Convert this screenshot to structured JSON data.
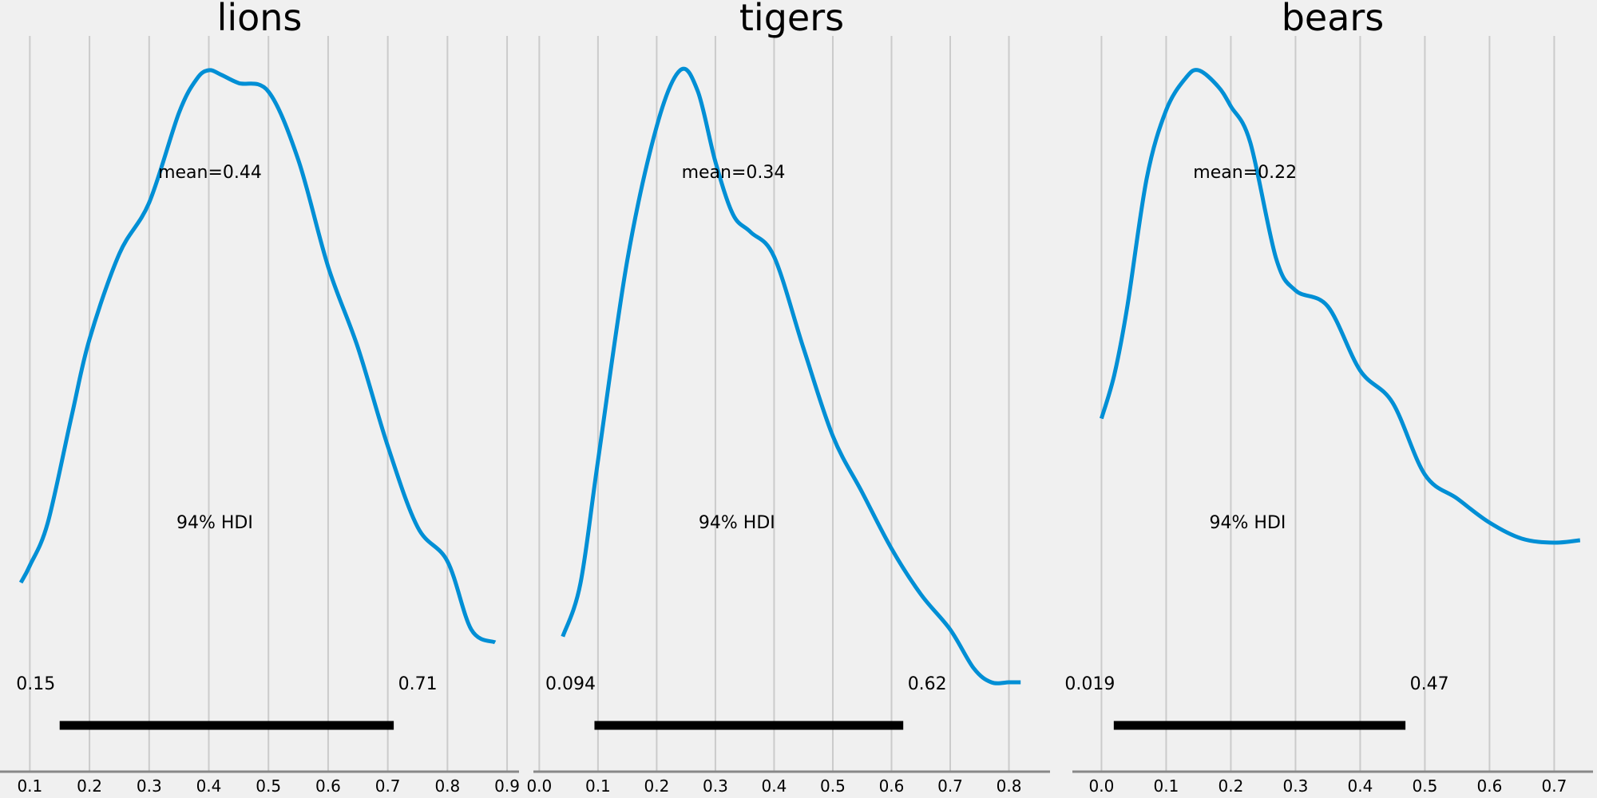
{
  "colors": {
    "background": "#f0f0f0",
    "grid": "#cbcbcb",
    "axis": "#888888",
    "density": "#008fd5",
    "hdi_bar": "#000000",
    "text": "#000000"
  },
  "chart_data": [
    {
      "type": "line",
      "title": "lions",
      "grid": true,
      "xlim": [
        0.05,
        0.92
      ],
      "xticks": [
        0.1,
        0.2,
        0.3,
        0.4,
        0.5,
        0.6,
        0.7,
        0.8,
        0.9
      ],
      "xtick_labels": [
        "0.1",
        "0.2",
        "0.3",
        "0.4",
        "0.5",
        "0.6",
        "0.7",
        "0.8",
        "0.9"
      ],
      "mean_label": "mean=0.44",
      "hdi_label": "94% HDI",
      "hdi_low": 0.15,
      "hdi_high": 0.71,
      "hdi_low_label": "0.15",
      "hdi_high_label": "0.71",
      "series": [
        {
          "x": [
            0.085,
            0.1,
            0.13,
            0.17,
            0.2,
            0.25,
            0.3,
            0.35,
            0.38,
            0.4,
            0.42,
            0.45,
            0.5,
            0.55,
            0.6,
            0.65,
            0.7,
            0.75,
            0.8,
            0.84,
            0.88
          ],
          "y": [
            0.0,
            0.04,
            0.14,
            0.39,
            0.57,
            0.77,
            0.89,
            1.1,
            1.18,
            1.2,
            1.19,
            1.17,
            1.15,
            0.99,
            0.74,
            0.55,
            0.32,
            0.13,
            0.05,
            -0.11,
            -0.14
          ]
        }
      ]
    },
    {
      "type": "line",
      "title": "tigers",
      "grid": true,
      "xlim": [
        -0.01,
        0.87
      ],
      "xticks": [
        0.0,
        0.1,
        0.2,
        0.3,
        0.4,
        0.5,
        0.6,
        0.7,
        0.8
      ],
      "xtick_labels": [
        "0.0",
        "0.1",
        "0.2",
        "0.3",
        "0.4",
        "0.5",
        "0.6",
        "0.7",
        "0.8"
      ],
      "mean_label": "mean=0.34",
      "hdi_label": "94% HDI",
      "hdi_low": 0.094,
      "hdi_high": 0.62,
      "hdi_low_label": "0.094",
      "hdi_high_label": "0.62",
      "series": [
        {
          "x": [
            0.04,
            0.07,
            0.1,
            0.15,
            0.2,
            0.24,
            0.27,
            0.3,
            0.33,
            0.36,
            0.4,
            0.45,
            0.5,
            0.55,
            0.6,
            0.65,
            0.7,
            0.74,
            0.77,
            0.8,
            0.82
          ],
          "y": [
            0.0,
            0.15,
            0.5,
            1.07,
            1.45,
            1.61,
            1.55,
            1.35,
            1.2,
            1.15,
            1.08,
            0.82,
            0.57,
            0.41,
            0.25,
            0.12,
            0.02,
            -0.09,
            -0.13,
            -0.13,
            -0.13
          ]
        }
      ]
    },
    {
      "type": "line",
      "title": "bears",
      "grid": true,
      "xlim": [
        -0.045,
        0.76
      ],
      "xticks": [
        0.0,
        0.1,
        0.2,
        0.3,
        0.4,
        0.5,
        0.6,
        0.7
      ],
      "xtick_labels": [
        "0.0",
        "0.1",
        "0.2",
        "0.3",
        "0.4",
        "0.5",
        "0.6",
        "0.7"
      ],
      "mean_label": "mean=0.22",
      "hdi_label": "94% HDI",
      "hdi_low": 0.019,
      "hdi_high": 0.47,
      "hdi_low_label": "0.019",
      "hdi_high_label": "0.47",
      "series": [
        {
          "x": [
            0.0,
            0.02,
            0.04,
            0.07,
            0.1,
            0.13,
            0.15,
            0.18,
            0.2,
            0.23,
            0.27,
            0.3,
            0.35,
            0.4,
            0.45,
            0.5,
            0.55,
            0.6,
            0.65,
            0.7,
            0.74
          ],
          "y": [
            1.6,
            2.15,
            3.0,
            4.6,
            5.45,
            5.85,
            5.95,
            5.75,
            5.5,
            5.05,
            3.6,
            3.2,
            3.0,
            2.2,
            1.8,
            0.9,
            0.6,
            0.3,
            0.1,
            0.05,
            0.08
          ]
        }
      ]
    }
  ]
}
